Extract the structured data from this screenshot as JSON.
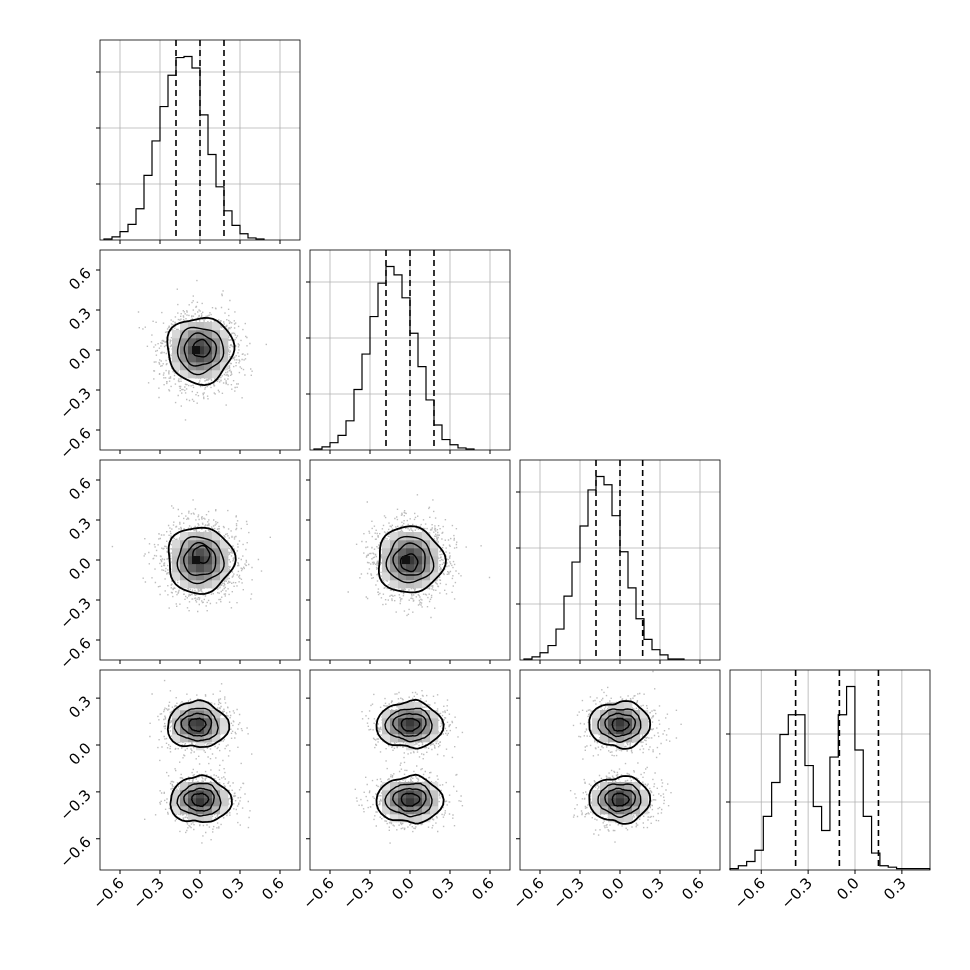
{
  "chart_data": {
    "type": "corner",
    "n_params": 4,
    "tick_labels": {
      "standard": [
        "−0.6",
        "−0.3",
        "0.0",
        "0.3",
        "0.6"
      ],
      "last": [
        "−0.6",
        "−0.3",
        "0.0",
        "0.3"
      ]
    },
    "tick_values": {
      "standard": [
        -0.6,
        -0.3,
        0.0,
        0.3,
        0.6
      ],
      "last": [
        -0.6,
        -0.3,
        0.0,
        0.3
      ]
    },
    "ranges": [
      [
        -0.75,
        0.75
      ],
      [
        -0.75,
        0.75
      ],
      [
        -0.75,
        0.75
      ],
      [
        -0.8,
        0.48
      ]
    ],
    "grid": true,
    "quantiles_dashed": [
      [
        -0.18,
        0.0,
        0.18
      ],
      [
        -0.18,
        0.0,
        0.18
      ],
      [
        -0.18,
        0.0,
        0.17
      ],
      [
        -0.38,
        -0.1,
        0.15
      ]
    ],
    "histograms": [
      {
        "bin_start": -0.72,
        "bin_width": 0.06,
        "counts": [
          1,
          3,
          8,
          15,
          30,
          62,
          95,
          128,
          158,
          175,
          176,
          165,
          120,
          82,
          51,
          28,
          14,
          6,
          2,
          1
        ]
      },
      {
        "bin_start": -0.72,
        "bin_width": 0.06,
        "counts": [
          1,
          3,
          7,
          14,
          28,
          58,
          92,
          128,
          160,
          176,
          168,
          146,
          112,
          80,
          48,
          24,
          10,
          5,
          2,
          1
        ]
      },
      {
        "bin_start": -0.72,
        "bin_width": 0.06,
        "counts": [
          1,
          3,
          7,
          14,
          30,
          62,
          95,
          130,
          165,
          178,
          170,
          140,
          105,
          70,
          40,
          20,
          10,
          5,
          1,
          1
        ]
      },
      {
        "bin_start": -0.8,
        "bin_width": 0.0533,
        "counts": [
          1,
          3,
          6,
          14,
          38,
          62,
          96,
          110,
          110,
          74,
          45,
          28,
          80,
          110,
          130,
          85,
          38,
          12,
          3,
          2,
          1,
          1,
          1,
          1
        ]
      }
    ],
    "panels_2d": [
      {
        "x": 0,
        "y": 1,
        "blobs": [
          [
            0.0,
            0.0,
            0.12,
            0.12
          ]
        ],
        "contours": [
          0.05,
          0.12,
          0.2,
          0.28
        ],
        "inner_shift": [
          0.01,
          0.01
        ]
      },
      {
        "x": 0,
        "y": 2,
        "blobs": [
          [
            0.0,
            0.0,
            0.12,
            0.12
          ]
        ],
        "contours": [
          0.05,
          0.12,
          0.2,
          0.28
        ],
        "inner_shift": [
          0.01,
          0.04
        ]
      },
      {
        "x": 1,
        "y": 2,
        "blobs": [
          [
            0.0,
            0.0,
            0.12,
            0.12
          ]
        ],
        "contours": [
          0.05,
          0.12,
          0.2,
          0.28
        ],
        "inner_shift": [
          -0.005,
          -0.02
        ]
      },
      {
        "x": 0,
        "y": 3,
        "blobs": [
          [
            -0.02,
            0.13,
            0.11,
            0.07
          ],
          [
            0.0,
            -0.35,
            0.11,
            0.07
          ]
        ],
        "contours": [
          0.04,
          0.1,
          0.17,
          0.24
        ],
        "inner_shift": [
          0.0,
          0.0
        ]
      },
      {
        "x": 1,
        "y": 3,
        "blobs": [
          [
            0.0,
            0.13,
            0.12,
            0.07
          ],
          [
            0.0,
            -0.35,
            0.12,
            0.07
          ]
        ],
        "contours": [
          0.04,
          0.1,
          0.17,
          0.24
        ],
        "inner_shift": [
          0.0,
          0.0
        ]
      },
      {
        "x": 2,
        "y": 3,
        "blobs": [
          [
            0.0,
            0.13,
            0.11,
            0.07
          ],
          [
            0.0,
            -0.35,
            0.11,
            0.07
          ]
        ],
        "contours": [
          0.04,
          0.1,
          0.17,
          0.24
        ],
        "inner_shift": [
          0.0,
          0.0
        ]
      }
    ],
    "colors": {
      "line": "#000000",
      "grid": "#b0b0b0",
      "scatter": "#bdbdbd",
      "density_max": "#3a3a3a",
      "density_min": "#ffffff"
    }
  }
}
